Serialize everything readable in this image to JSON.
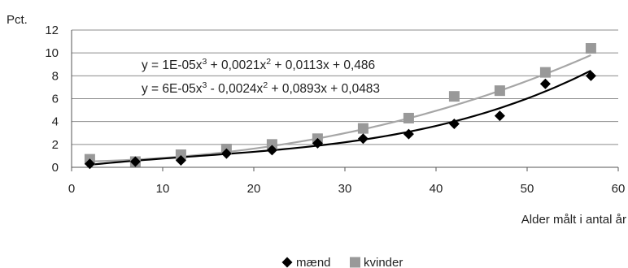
{
  "chart_data": {
    "type": "scatter",
    "ylabel": "Pct.",
    "xlabel": "Alder målt i antal år",
    "xlim": [
      0,
      60
    ],
    "ylim": [
      0,
      12
    ],
    "xticks": [
      0,
      10,
      20,
      30,
      40,
      50,
      60
    ],
    "yticks": [
      0,
      2,
      4,
      6,
      8,
      10,
      12
    ],
    "grid": "horizontal",
    "legend_position": "bottom",
    "series": [
      {
        "name": "mænd",
        "marker": "diamond",
        "color": "#000000",
        "x": [
          2,
          7,
          12,
          17,
          22,
          27,
          32,
          37,
          42,
          47,
          52,
          57
        ],
        "y": [
          0.3,
          0.5,
          0.6,
          1.2,
          1.5,
          2.1,
          2.5,
          2.9,
          3.8,
          4.5,
          7.3,
          8.0
        ],
        "trendline": {
          "type": "poly3",
          "coefficients": [
            0.0483,
            0.0893,
            -0.0024,
            6e-05
          ],
          "equation": {
            "text": "y = 6E-05x",
            "sup1": "3",
            "mid": " - 0,0024x",
            "sup2": "2",
            "tail": " + 0,0893x + 0,0483"
          }
        }
      },
      {
        "name": "kvinder",
        "marker": "square",
        "color": "#999999",
        "x": [
          2,
          7,
          12,
          17,
          22,
          27,
          32,
          37,
          42,
          47,
          52,
          57
        ],
        "y": [
          0.7,
          0.5,
          1.1,
          1.6,
          2.0,
          2.5,
          3.4,
          4.3,
          6.2,
          6.7,
          8.3,
          10.4
        ],
        "trendline": {
          "type": "poly3",
          "coefficients": [
            0.486,
            0.0113,
            0.0021,
            1e-05
          ],
          "equation": {
            "text": "y = 1E-05x",
            "sup1": "3",
            "mid": " + 0,0021x",
            "sup2": "2",
            "tail": " + 0,0113x + 0,486"
          }
        }
      }
    ]
  }
}
